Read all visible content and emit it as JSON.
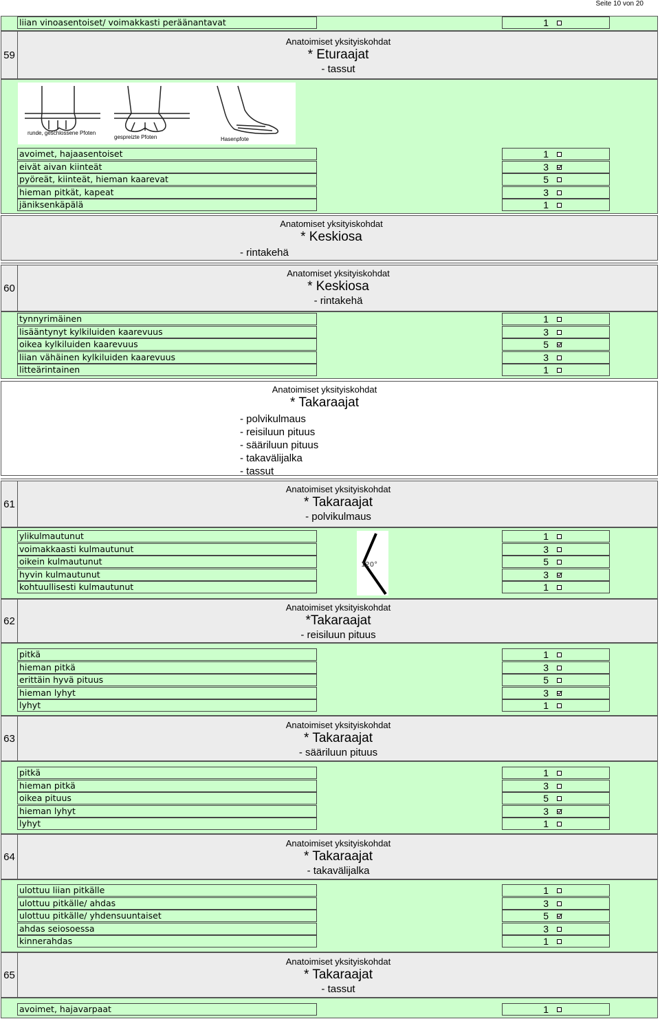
{
  "page_header": "Seite 10 von 20",
  "top_option": {
    "label": "liian vinoasentoiset/ voimakkasti peräänantavat",
    "score": "1",
    "checked": false
  },
  "sections": [
    {
      "num": "59",
      "small": "Anatoimiset yksityiskohdat",
      "title": "* Eturaajat",
      "sub": "- tassut"
    },
    {
      "num": "60",
      "small": "Anatomiset yksityiskohdat",
      "title": "* Keskiosa",
      "sub": "- rintakehä"
    },
    {
      "num": "61",
      "small": "Anatoimiset yksityiskohdat",
      "title": "* Takaraajat",
      "sub": "- polvikulmaus"
    },
    {
      "num": "62",
      "small": "Anatoimiset yksityiskohdat",
      "title": "*Takaraajat",
      "sub": "- reisiluun pituus"
    },
    {
      "num": "63",
      "small": "Anatoimiset yksityiskohdat",
      "title": "* Takaraajat",
      "sub": "- sääriluun pituus"
    },
    {
      "num": "64",
      "small": "Anatoimiset yksityiskohdat",
      "title": "* Takaraajat",
      "sub": "- takavälijalka"
    },
    {
      "num": "65",
      "small": "Anatoimiset yksityiskohdat",
      "title": "* Takaraajat",
      "sub": "- tassut"
    }
  ],
  "intro_keskiosa": {
    "small": "Anatomiset yksityiskohdat",
    "title": "* Keskiosa",
    "sub": "- rintakehä"
  },
  "intro_takaraajat": {
    "small": "Anatoimiset yksityiskohdat",
    "title": "* Takaraajat",
    "subs": [
      "- polvikulmaus",
      "- reisiluun pituus",
      "- sääriluun pituus",
      "- takavälijalka",
      "- tassut"
    ]
  },
  "paw_image": {
    "labels": [
      "runde, geschlossene Pfoten",
      "gespreizte Pfoten",
      "Hasenpfote"
    ]
  },
  "angle_image": {
    "label": "120°"
  },
  "options_59": [
    {
      "label": "avoimet, hajaasentoiset",
      "score": "1",
      "checked": false
    },
    {
      "label": "eivät aivan kiinteät",
      "score": "3",
      "checked": true
    },
    {
      "label": "pyöreät,  kiinteät, hieman kaarevat",
      "score": "5",
      "checked": false
    },
    {
      "label": "hieman pitkät, kapeat",
      "score": "3",
      "checked": false
    },
    {
      "label": "jäniksenkäpälä",
      "score": "1",
      "checked": false
    }
  ],
  "options_60": [
    {
      "label": "tynnyrimäinen",
      "score": "1",
      "checked": false
    },
    {
      "label": "lisääntynyt kylkiluiden kaarevuus",
      "score": "3",
      "checked": false
    },
    {
      "label": "oikea kylkiluiden kaarevuus",
      "score": "5",
      "checked": true
    },
    {
      "label": "liian vähäinen kylkiluiden kaarevuus",
      "score": "3",
      "checked": false
    },
    {
      "label": "litteärintainen",
      "score": "1",
      "checked": false
    }
  ],
  "options_61": [
    {
      "label": "ylikulmautunut",
      "score": "1",
      "checked": false
    },
    {
      "label": "voimakkaasti kulmautunut",
      "score": "3",
      "checked": false
    },
    {
      "label": "oikein kulmautunut",
      "score": "5",
      "checked": false
    },
    {
      "label": "hyvin kulmautunut",
      "score": "3",
      "checked": true
    },
    {
      "label": "kohtuullisesti kulmautunut",
      "score": "1",
      "checked": false
    }
  ],
  "options_62": [
    {
      "label": "pitkä",
      "score": "1",
      "checked": false
    },
    {
      "label": "hieman pitkä",
      "score": "3",
      "checked": false
    },
    {
      "label": "erittäin hyvä pituus",
      "score": "5",
      "checked": false
    },
    {
      "label": "hieman lyhyt",
      "score": "3",
      "checked": true
    },
    {
      "label": "lyhyt",
      "score": "1",
      "checked": false
    }
  ],
  "options_63": [
    {
      "label": "pitkä",
      "score": "1",
      "checked": false
    },
    {
      "label": "hieman pitkä",
      "score": "3",
      "checked": false
    },
    {
      "label": "oikea pituus",
      "score": "5",
      "checked": false
    },
    {
      "label": "hieman lyhyt",
      "score": "3",
      "checked": true
    },
    {
      "label": "lyhyt",
      "score": "1",
      "checked": false
    }
  ],
  "options_64": [
    {
      "label": "ulottuu liian pitkälle",
      "score": "1",
      "checked": false
    },
    {
      "label": "ulottuu pitkälle/ ahdas",
      "score": "3",
      "checked": false
    },
    {
      "label": "ulottuu pitkälle/ yhdensuuntaiset",
      "score": "5",
      "checked": true
    },
    {
      "label": "ahdas seiosoessa",
      "score": "3",
      "checked": false
    },
    {
      "label": "kinnerahdas",
      "score": "1",
      "checked": false
    }
  ],
  "options_65": [
    {
      "label": "avoimet, hajavarpaat",
      "score": "1",
      "checked": false
    }
  ]
}
